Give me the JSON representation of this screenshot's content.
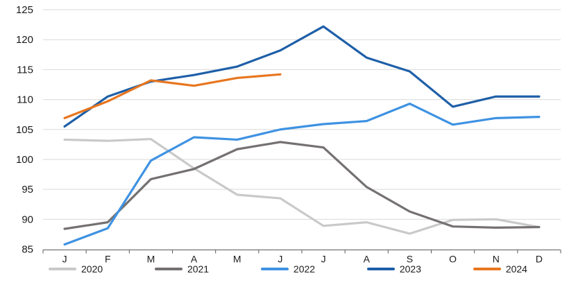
{
  "chart_data": {
    "type": "line",
    "title": "",
    "xlabel": "",
    "ylabel": "",
    "categories": [
      "J",
      "F",
      "M",
      "A",
      "M",
      "J",
      "J",
      "A",
      "S",
      "O",
      "N",
      "D"
    ],
    "series": [
      {
        "name": "2020",
        "color": "#c9c9c9",
        "values": [
          103.3,
          103.1,
          103.4,
          98.5,
          94.1,
          93.5,
          88.9,
          89.5,
          87.6,
          89.9,
          90.0,
          88.7
        ]
      },
      {
        "name": "2021",
        "color": "#757171",
        "values": [
          88.4,
          89.5,
          96.7,
          98.4,
          101.7,
          102.9,
          102.0,
          95.4,
          91.3,
          88.8,
          88.6,
          88.7
        ]
      },
      {
        "name": "2022",
        "color": "#3e92e2",
        "values": [
          85.8,
          88.5,
          99.8,
          103.7,
          103.3,
          105.0,
          105.9,
          106.4,
          109.3,
          105.8,
          106.9,
          107.1
        ]
      },
      {
        "name": "2023",
        "color": "#1e5fa8",
        "values": [
          105.5,
          110.5,
          113.0,
          114.1,
          115.5,
          118.2,
          122.2,
          117.0,
          114.7,
          108.8,
          110.5,
          110.5
        ]
      },
      {
        "name": "2024",
        "color": "#e8761f",
        "values": [
          106.9,
          109.7,
          113.2,
          112.3,
          113.6,
          114.2,
          null,
          null,
          null,
          null,
          null,
          null
        ]
      }
    ],
    "ylim": [
      85,
      125
    ],
    "yticks": [
      125,
      120,
      115,
      110,
      105,
      100,
      95,
      90,
      85
    ],
    "grid": true,
    "legend_position": "bottom"
  },
  "style": {
    "gridline_color": "#d9d9d9",
    "axis_color": "#595959",
    "text_color": "#1a1a1a",
    "background": "#ffffff"
  }
}
